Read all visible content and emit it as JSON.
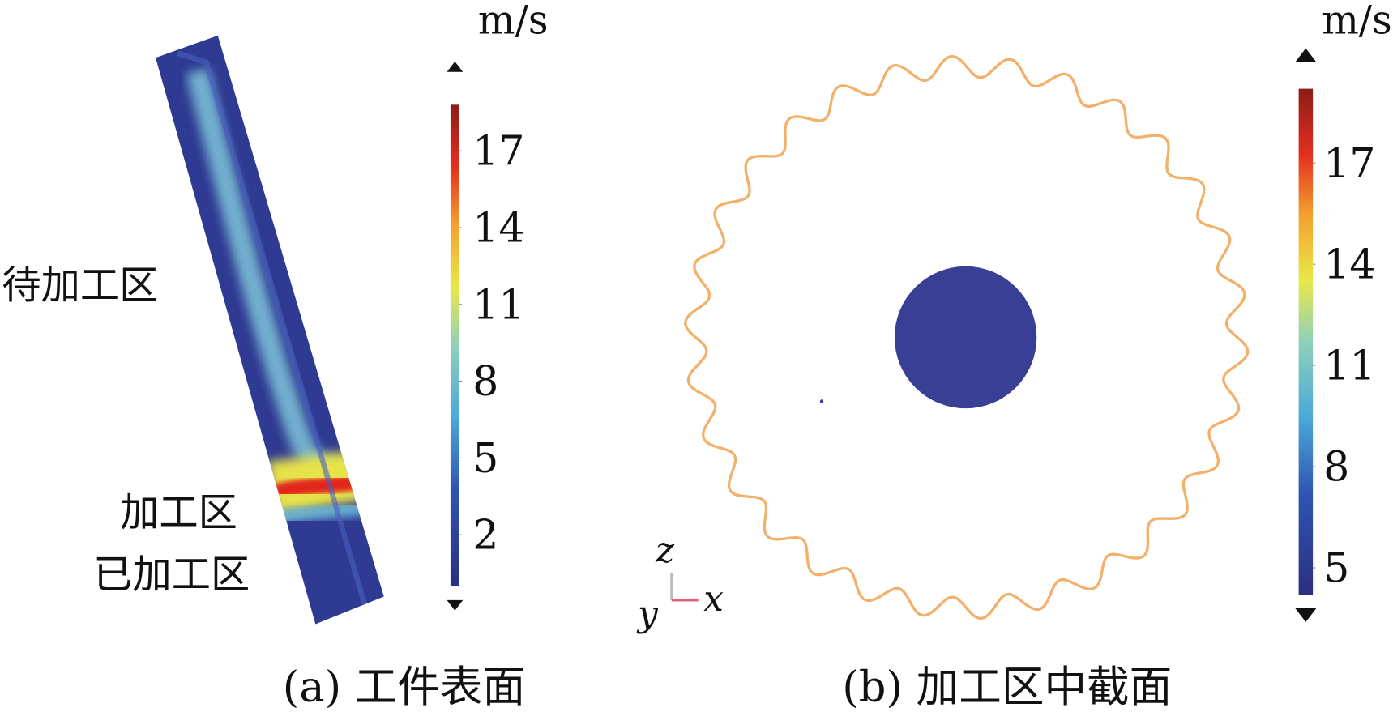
{
  "panels": [
    {
      "caption": "(a) 工件表面",
      "annotations": [
        "待加工区",
        "加工区",
        "已加工区"
      ],
      "colorbar": {
        "unit": "m/s",
        "range": [
          0,
          18.8
        ],
        "ticks": [
          2,
          5,
          8,
          11,
          14,
          17
        ]
      }
    },
    {
      "caption": "(b) 加工区中截面",
      "axes": [
        "z",
        "y",
        "x"
      ],
      "colorbar": {
        "unit": "m/s",
        "range": [
          4.2,
          19.2
        ],
        "ticks": [
          5,
          8,
          11,
          14,
          17
        ]
      }
    }
  ]
}
